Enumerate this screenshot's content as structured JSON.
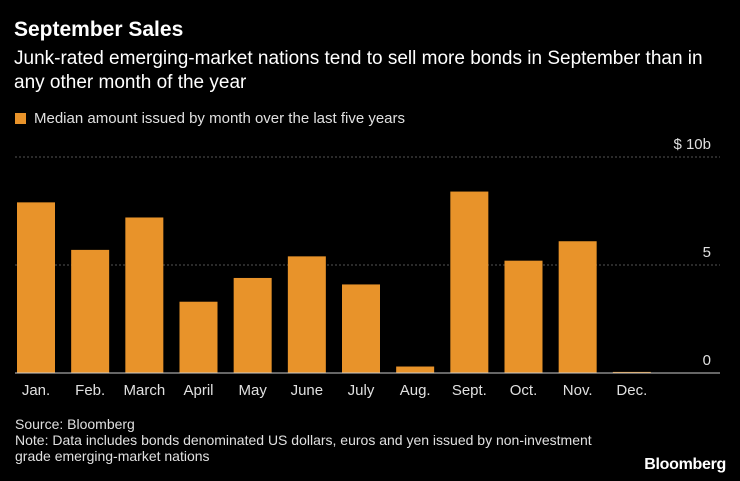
{
  "title": "September Sales",
  "subtitle": "Junk-rated emerging-market nations tend to sell more bonds in September than in any other month of the year",
  "legend": {
    "label": "Median amount issued by month over the last five years",
    "color": "#e8932a"
  },
  "source": "Source: Bloomberg",
  "note": "Note: Data includes bonds denominated US dollars, euros and yen issued by non-investment grade emerging-market nations",
  "brand": "Bloomberg",
  "chart_data": {
    "type": "bar",
    "categories": [
      "Jan.",
      "Feb.",
      "March",
      "April",
      "May",
      "June",
      "July",
      "Aug.",
      "Sept.",
      "Oct.",
      "Nov.",
      "Dec."
    ],
    "values": [
      7.9,
      5.7,
      7.2,
      3.3,
      4.4,
      5.4,
      4.1,
      0.3,
      8.4,
      5.2,
      6.1,
      0.05
    ],
    "ylim": [
      0,
      10
    ],
    "yticks": [
      0,
      5,
      10
    ],
    "ytick_labels": [
      "0",
      "5",
      "$ 10b"
    ],
    "grid": true,
    "bar_color": "#e8932a",
    "grid_color": "#555555"
  }
}
